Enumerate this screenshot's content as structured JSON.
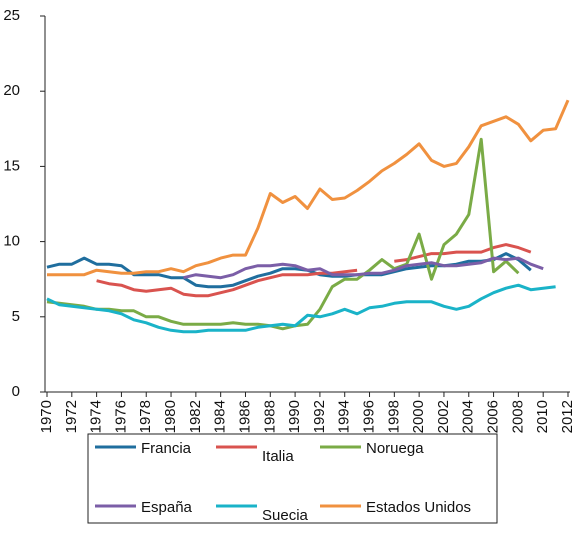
{
  "chart_data": {
    "type": "line",
    "x": [
      1970,
      1971,
      1972,
      1973,
      1974,
      1975,
      1976,
      1977,
      1978,
      1979,
      1980,
      1981,
      1982,
      1983,
      1984,
      1985,
      1986,
      1987,
      1988,
      1989,
      1990,
      1991,
      1992,
      1993,
      1994,
      1995,
      1996,
      1997,
      1998,
      1999,
      2000,
      2001,
      2002,
      2003,
      2004,
      2005,
      2006,
      2007,
      2008,
      2009,
      2010,
      2011,
      2012
    ],
    "xlim": [
      1970,
      2012
    ],
    "xticks": [
      1970,
      1972,
      1974,
      1976,
      1978,
      1980,
      1982,
      1984,
      1986,
      1988,
      1990,
      1992,
      1994,
      1996,
      1998,
      2000,
      2002,
      2004,
      2006,
      2008,
      2010,
      2012
    ],
    "ylim": [
      0,
      25
    ],
    "yticks": [
      0,
      5,
      10,
      15,
      20,
      25
    ],
    "grid": false,
    "legend": "bottom",
    "series": [
      {
        "name": "Francia",
        "color": "#1f6e9e",
        "values": [
          8.3,
          8.5,
          8.5,
          8.9,
          8.5,
          8.5,
          8.4,
          7.8,
          7.8,
          7.8,
          7.6,
          7.6,
          7.1,
          7.0,
          7.0,
          7.1,
          7.4,
          7.7,
          7.9,
          8.2,
          8.2,
          8.1,
          7.8,
          7.7,
          7.7,
          7.8,
          7.8,
          7.8,
          8.0,
          8.2,
          8.3,
          8.4,
          8.4,
          8.5,
          8.7,
          8.7,
          8.8,
          9.2,
          8.8,
          8.1,
          null,
          null,
          null
        ]
      },
      {
        "name": "Italia",
        "color": "#d9534f",
        "values": [
          null,
          null,
          null,
          null,
          7.4,
          7.2,
          7.1,
          6.8,
          6.7,
          6.8,
          6.9,
          6.5,
          6.4,
          6.4,
          6.6,
          6.8,
          7.1,
          7.4,
          7.6,
          7.8,
          7.8,
          7.8,
          7.9,
          7.9,
          8.0,
          8.1,
          null,
          null,
          8.7,
          8.8,
          9.0,
          9.2,
          9.2,
          9.3,
          9.3,
          9.3,
          9.6,
          9.8,
          9.6,
          9.3,
          null,
          null,
          null
        ]
      },
      {
        "name": "Noruega",
        "color": "#7aab46",
        "values": [
          6.0,
          5.9,
          5.8,
          5.7,
          5.5,
          5.5,
          5.4,
          5.4,
          5.0,
          5.0,
          4.7,
          4.5,
          4.5,
          4.5,
          4.5,
          4.6,
          4.5,
          4.5,
          4.4,
          4.2,
          4.4,
          4.5,
          5.5,
          7.0,
          7.5,
          7.5,
          8.1,
          8.8,
          8.2,
          8.5,
          10.5,
          7.5,
          9.8,
          10.5,
          11.8,
          16.8,
          8.0,
          8.7,
          7.9,
          null,
          null,
          null,
          null
        ]
      },
      {
        "name": "España",
        "color": "#7b5ea7",
        "values": [
          null,
          null,
          null,
          null,
          null,
          null,
          null,
          null,
          null,
          null,
          null,
          7.6,
          7.8,
          7.7,
          7.6,
          7.8,
          8.2,
          8.4,
          8.4,
          8.5,
          8.4,
          8.1,
          8.2,
          7.8,
          7.8,
          7.8,
          7.9,
          7.9,
          8.1,
          8.4,
          8.5,
          8.6,
          8.4,
          8.4,
          8.5,
          8.6,
          8.9,
          8.8,
          8.9,
          8.5,
          8.2,
          null,
          null
        ]
      },
      {
        "name": "Suecia",
        "color": "#1ab3c8",
        "values": [
          6.2,
          5.8,
          5.7,
          5.6,
          5.5,
          5.4,
          5.2,
          4.8,
          4.6,
          4.3,
          4.1,
          4.0,
          4.0,
          4.1,
          4.1,
          4.1,
          4.1,
          4.3,
          4.4,
          4.5,
          4.4,
          5.1,
          5.0,
          5.2,
          5.5,
          5.2,
          5.6,
          5.7,
          5.9,
          6.0,
          6.0,
          6.0,
          5.7,
          5.5,
          5.7,
          6.2,
          6.6,
          6.9,
          7.1,
          6.8,
          6.9,
          7.0,
          null
        ]
      },
      {
        "name": "Estados Unidos",
        "color": "#f0913f",
        "values": [
          7.8,
          7.8,
          7.8,
          7.8,
          8.1,
          8.0,
          7.9,
          7.9,
          8.0,
          8.0,
          8.2,
          8.0,
          8.4,
          8.6,
          8.9,
          9.1,
          9.1,
          10.9,
          13.2,
          12.6,
          13.0,
          12.2,
          13.5,
          12.8,
          12.9,
          13.4,
          14.0,
          14.7,
          15.2,
          15.8,
          16.5,
          15.4,
          15.0,
          15.2,
          16.3,
          17.7,
          18.0,
          18.3,
          17.8,
          16.7,
          17.4,
          17.5,
          19.4
        ]
      }
    ]
  }
}
